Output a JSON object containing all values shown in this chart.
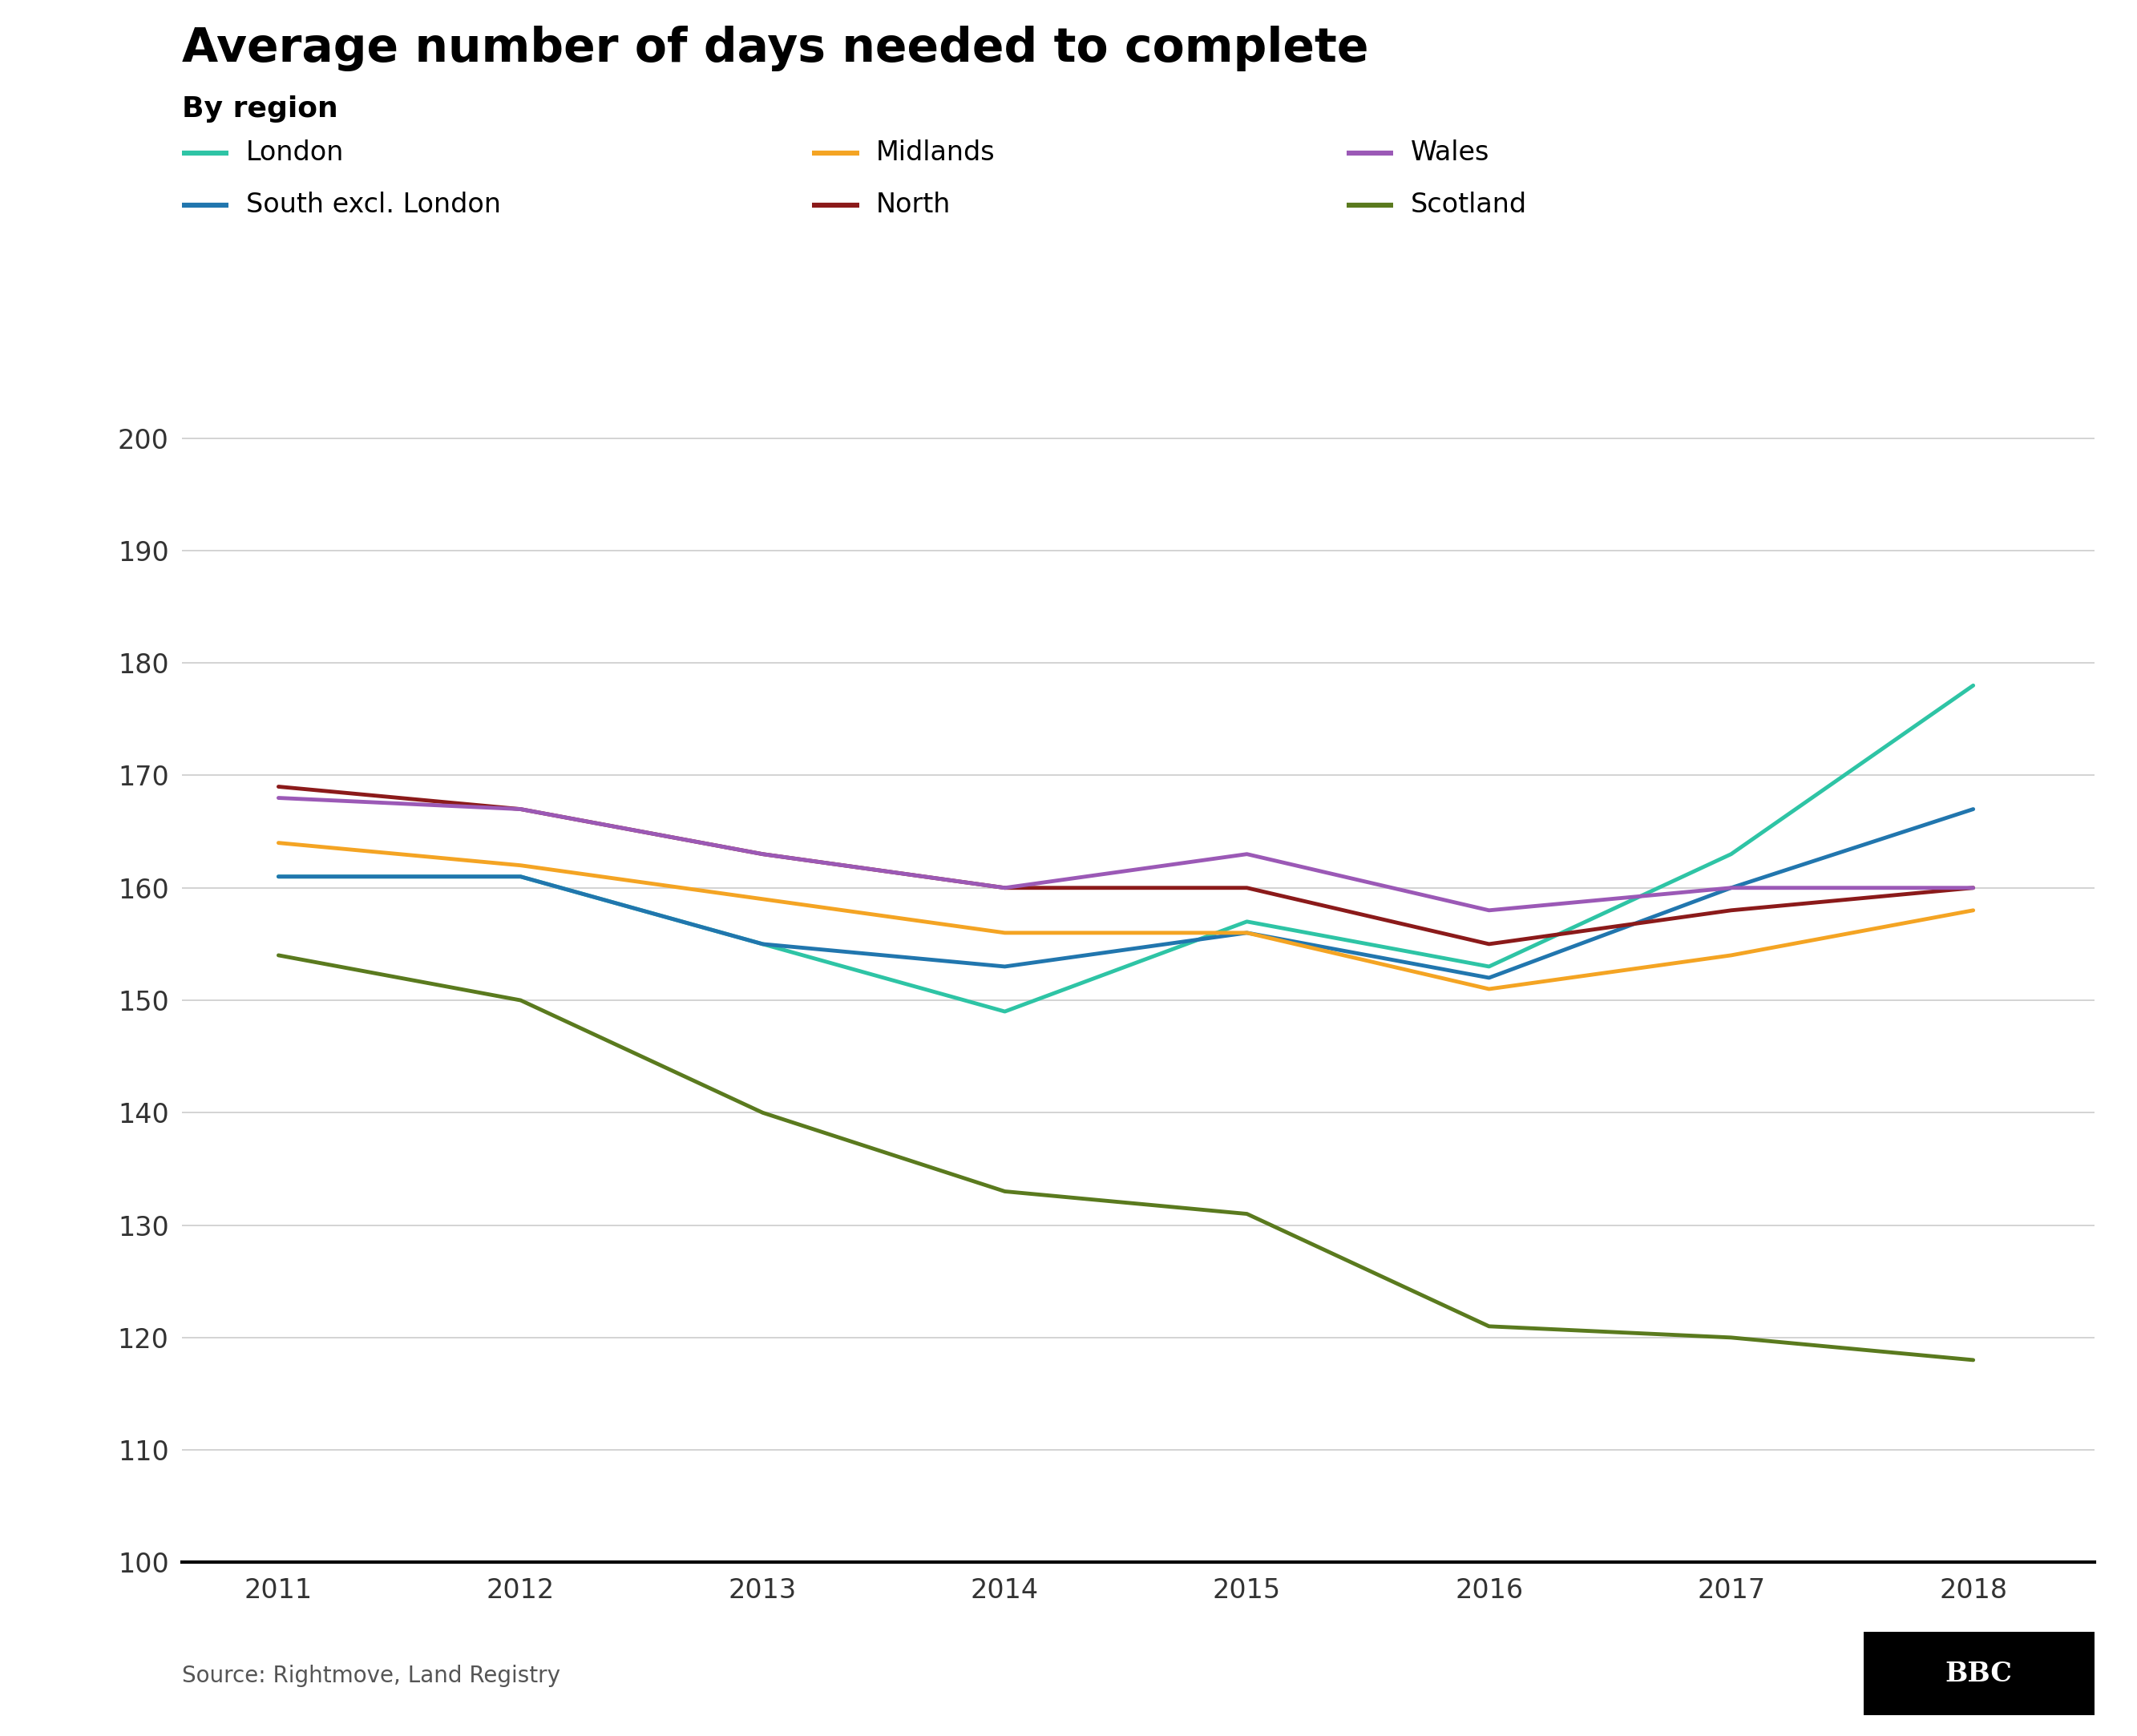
{
  "title": "Average number of days needed to complete",
  "subtitle": "By region",
  "source": "Source: Rightmove, Land Registry",
  "years": [
    2011,
    2012,
    2013,
    2014,
    2015,
    2016,
    2017,
    2018
  ],
  "series": {
    "London": {
      "color": "#2EC4A5",
      "values": [
        161,
        161,
        155,
        149,
        157,
        153,
        163,
        178
      ]
    },
    "South excl. London": {
      "color": "#2176AE",
      "values": [
        161,
        161,
        155,
        153,
        156,
        152,
        160,
        167
      ]
    },
    "Midlands": {
      "color": "#F4A423",
      "values": [
        164,
        162,
        159,
        156,
        156,
        151,
        154,
        158
      ]
    },
    "North": {
      "color": "#8B1A1A",
      "values": [
        169,
        167,
        163,
        160,
        160,
        155,
        158,
        160
      ]
    },
    "Wales": {
      "color": "#9B59B6",
      "values": [
        168,
        167,
        163,
        160,
        163,
        158,
        160,
        160
      ]
    },
    "Scotland": {
      "color": "#5A7A1E",
      "values": [
        154,
        150,
        140,
        133,
        131,
        121,
        120,
        118
      ]
    }
  },
  "ylim": [
    100,
    205
  ],
  "yticks": [
    100,
    110,
    120,
    130,
    140,
    150,
    160,
    170,
    180,
    190,
    200
  ],
  "background_color": "#ffffff",
  "grid_color": "#cccccc",
  "title_fontsize": 42,
  "subtitle_fontsize": 26,
  "legend_fontsize": 24,
  "tick_fontsize": 24,
  "source_fontsize": 20,
  "line_width": 3.5,
  "legend_layout": [
    [
      "London",
      "Midlands",
      "Wales"
    ],
    [
      "South excl. London",
      "North",
      "Scotland"
    ]
  ]
}
